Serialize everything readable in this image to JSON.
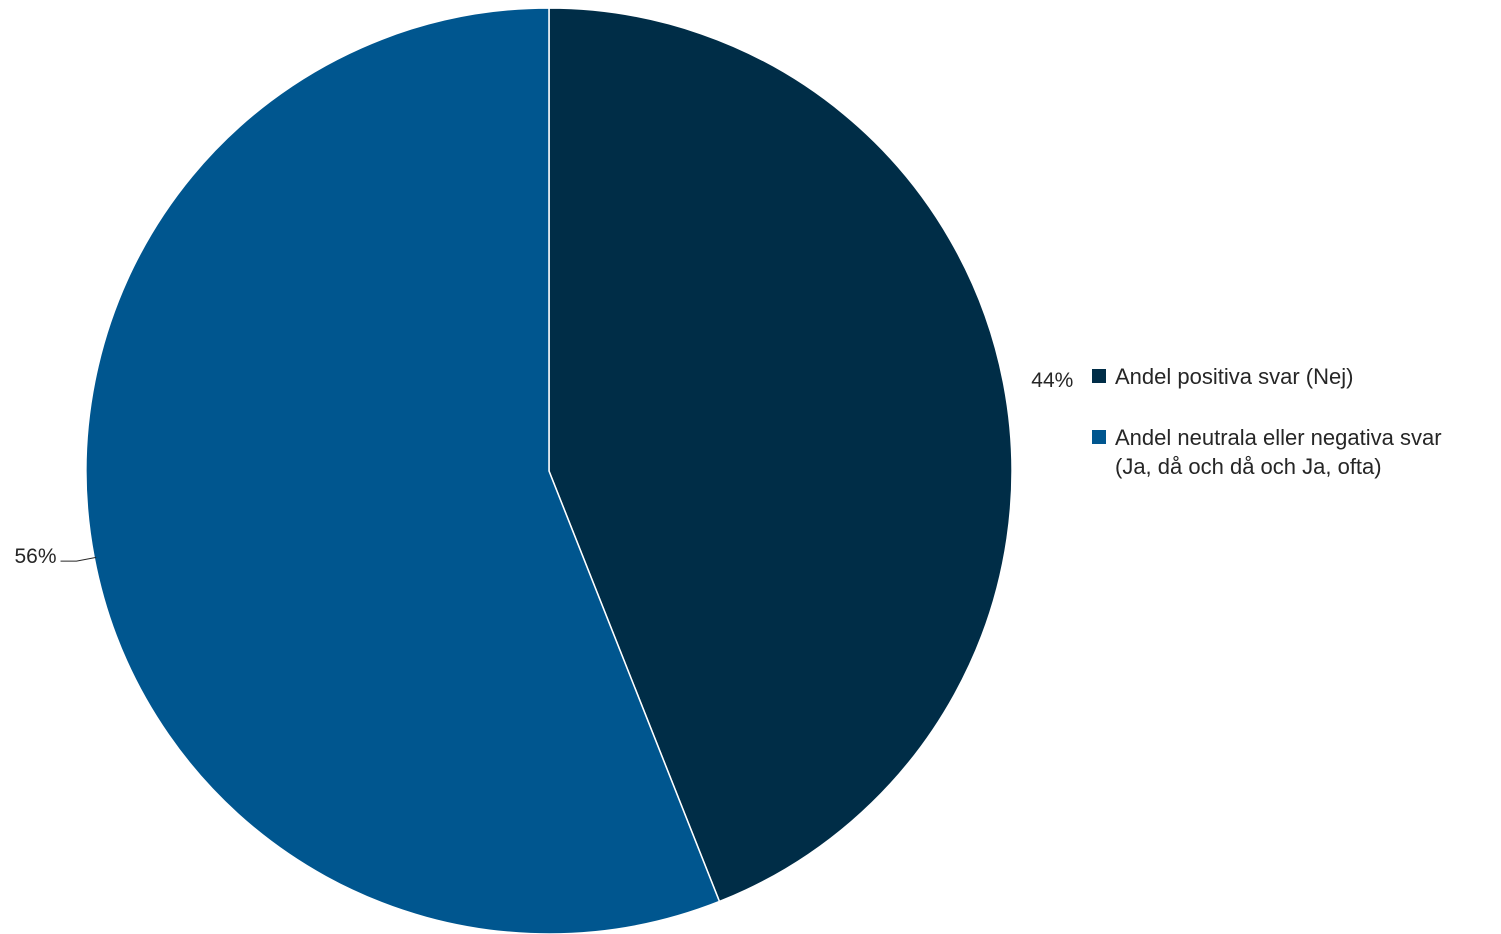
{
  "chart_data": {
    "type": "pie",
    "start_angle_deg": 0,
    "direction": "clockwise",
    "slices": [
      {
        "label": "Andel positiva svar (Nej)",
        "value": 44,
        "display": "44%",
        "color": "#002d47"
      },
      {
        "label": "Andel neutrala eller negativa svar\n(Ja, då och då och Ja, ofta)",
        "value": 56,
        "display": "56%",
        "color": "#00568f"
      }
    ],
    "legend_position": "right"
  }
}
